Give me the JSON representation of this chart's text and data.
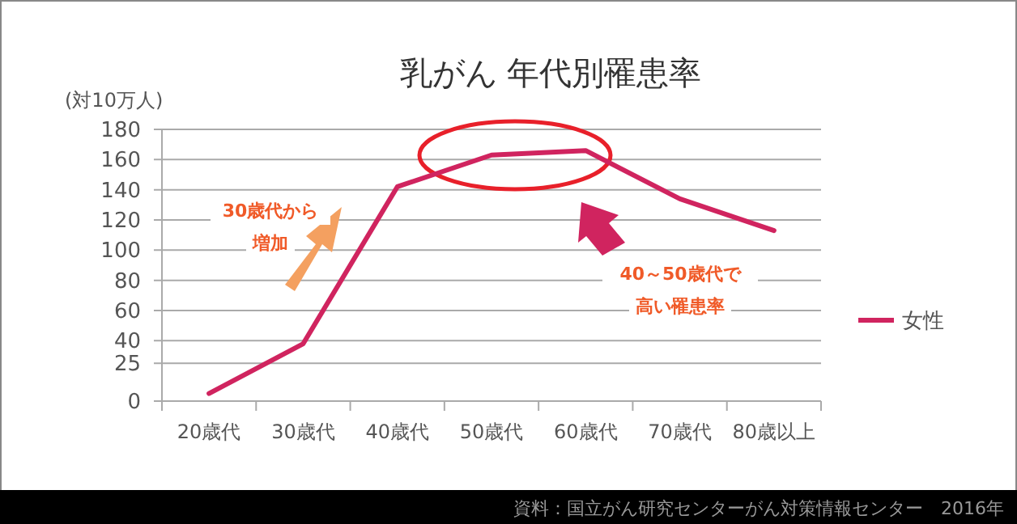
{
  "chart_data": {
    "type": "line",
    "title": "乳がん 年代別罹患率",
    "ylabel": "(対10万人)",
    "categories": [
      "20歳代",
      "30歳代",
      "40歳代",
      "50歳代",
      "60歳代",
      "70歳代",
      "80歳以上"
    ],
    "series": [
      {
        "name": "女性",
        "color": "#d0245f",
        "values": [
          5,
          38,
          142,
          163,
          166,
          134,
          113
        ]
      }
    ],
    "ylim": [
      0,
      180
    ],
    "yticks": [
      0,
      25,
      40,
      60,
      80,
      100,
      120,
      140,
      160,
      180
    ],
    "grid": "y",
    "legend": "right",
    "marker": "none",
    "line_style": "solid",
    "annotations": [
      "30歳代から増加",
      "40～50歳代で高い罹患率",
      "資料：国立がん研究センターがん対策情報センター　2016年"
    ]
  }
}
